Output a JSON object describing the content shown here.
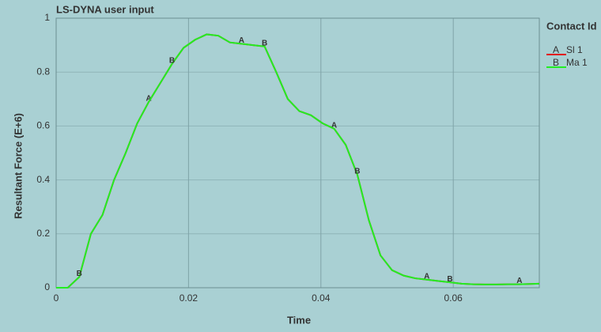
{
  "chart_data": {
    "type": "line",
    "title": "LS-DYNA user input",
    "x_label": "Time",
    "y_label": "Resultant Force (E+6)",
    "legend_title": "Contact Id",
    "legend": "top-right",
    "x": [
      0,
      0.00175,
      0.0035,
      0.00525,
      0.007,
      0.00875,
      0.0105,
      0.01225,
      0.014,
      0.01575,
      0.0175,
      0.01925,
      0.021,
      0.02275,
      0.0245,
      0.02625,
      0.028,
      0.02975,
      0.0315,
      0.03325,
      0.035,
      0.03675,
      0.0385,
      0.04025,
      0.042,
      0.04375,
      0.0455,
      0.04725,
      0.049,
      0.05075,
      0.0525,
      0.05425,
      0.056,
      0.05775,
      0.0595,
      0.06125,
      0.063,
      0.06475,
      0.0665,
      0.06825,
      0.07,
      0.073
    ],
    "series": [
      {
        "name": "Sl 1",
        "symbol": "A",
        "color": "#e01010",
        "values": [
          0,
          0,
          0.04,
          0.2,
          0.27,
          0.4,
          0.5,
          0.61,
          0.69,
          0.76,
          0.83,
          0.89,
          0.92,
          0.94,
          0.935,
          0.91,
          0.905,
          0.9,
          0.895,
          0.8,
          0.7,
          0.655,
          0.64,
          0.61,
          0.59,
          0.53,
          0.42,
          0.25,
          0.12,
          0.065,
          0.045,
          0.035,
          0.03,
          0.025,
          0.02,
          0.015,
          0.013,
          0.012,
          0.012,
          0.013,
          0.013,
          0.015
        ]
      },
      {
        "name": "Ma 1",
        "symbol": "B",
        "color": "#22ee22",
        "values": [
          0,
          0,
          0.04,
          0.2,
          0.27,
          0.4,
          0.5,
          0.61,
          0.69,
          0.76,
          0.83,
          0.89,
          0.92,
          0.94,
          0.935,
          0.91,
          0.905,
          0.9,
          0.895,
          0.8,
          0.7,
          0.655,
          0.64,
          0.61,
          0.59,
          0.53,
          0.42,
          0.25,
          0.12,
          0.065,
          0.045,
          0.035,
          0.03,
          0.025,
          0.02,
          0.015,
          0.013,
          0.012,
          0.012,
          0.013,
          0.013,
          0.015
        ]
      }
    ],
    "xlim": [
      0,
      0.073
    ],
    "xticks": [
      0,
      0.02,
      0.04,
      0.06
    ],
    "ylim": [
      0,
      1
    ],
    "yticks": [
      0,
      0.2,
      0.4,
      0.6,
      0.8,
      1
    ],
    "grid": true
  }
}
